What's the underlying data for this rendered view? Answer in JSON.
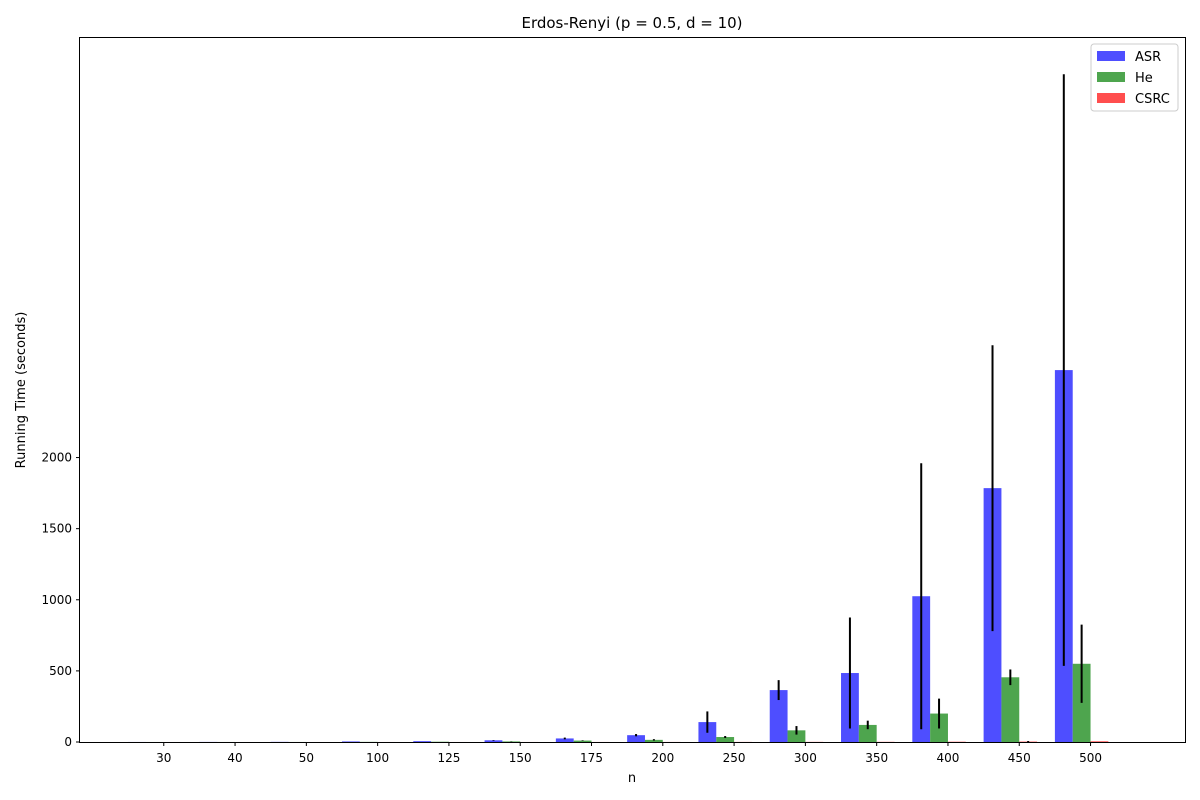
{
  "chart_data": {
    "type": "bar",
    "title": "Erdos-Renyi (p = 0.5, d = 10)",
    "xlabel": "n",
    "ylabel": "Running Time (seconds)",
    "categories": [
      "30",
      "40",
      "50",
      "100",
      "125",
      "150",
      "175",
      "200",
      "250",
      "300",
      "350",
      "400",
      "450",
      "500"
    ],
    "yticks": [
      0,
      500,
      1000,
      1500,
      2000
    ],
    "ylim": [
      0,
      4950
    ],
    "legend_position": "top-right",
    "series": [
      {
        "name": "ASR",
        "color": "#4444ff",
        "values": [
          0.3,
          0.6,
          1,
          4,
          6,
          12,
          25,
          48,
          140,
          365,
          485,
          1025,
          1785,
          2615
        ],
        "errors": [
          0,
          0,
          0,
          0,
          0,
          2,
          6,
          8,
          75,
          70,
          390,
          935,
          1005,
          2080
        ]
      },
      {
        "name": "He",
        "color": "#44a044",
        "values": [
          0.1,
          0.2,
          0.3,
          1,
          2,
          4,
          10,
          15,
          35,
          82,
          120,
          200,
          455,
          550
        ],
        "errors": [
          0,
          0,
          0,
          0,
          0,
          1,
          2,
          5,
          7,
          30,
          30,
          105,
          55,
          275
        ]
      },
      {
        "name": "CSRC",
        "color": "#ff4444",
        "values": [
          0.05,
          0.05,
          0.05,
          0.1,
          0.1,
          0.2,
          0.3,
          0.4,
          0.6,
          0.9,
          1.2,
          2,
          3,
          5
        ],
        "errors": [
          0,
          0,
          0,
          0,
          0,
          0,
          0,
          0,
          0,
          0,
          0,
          0,
          4,
          0
        ]
      }
    ]
  }
}
